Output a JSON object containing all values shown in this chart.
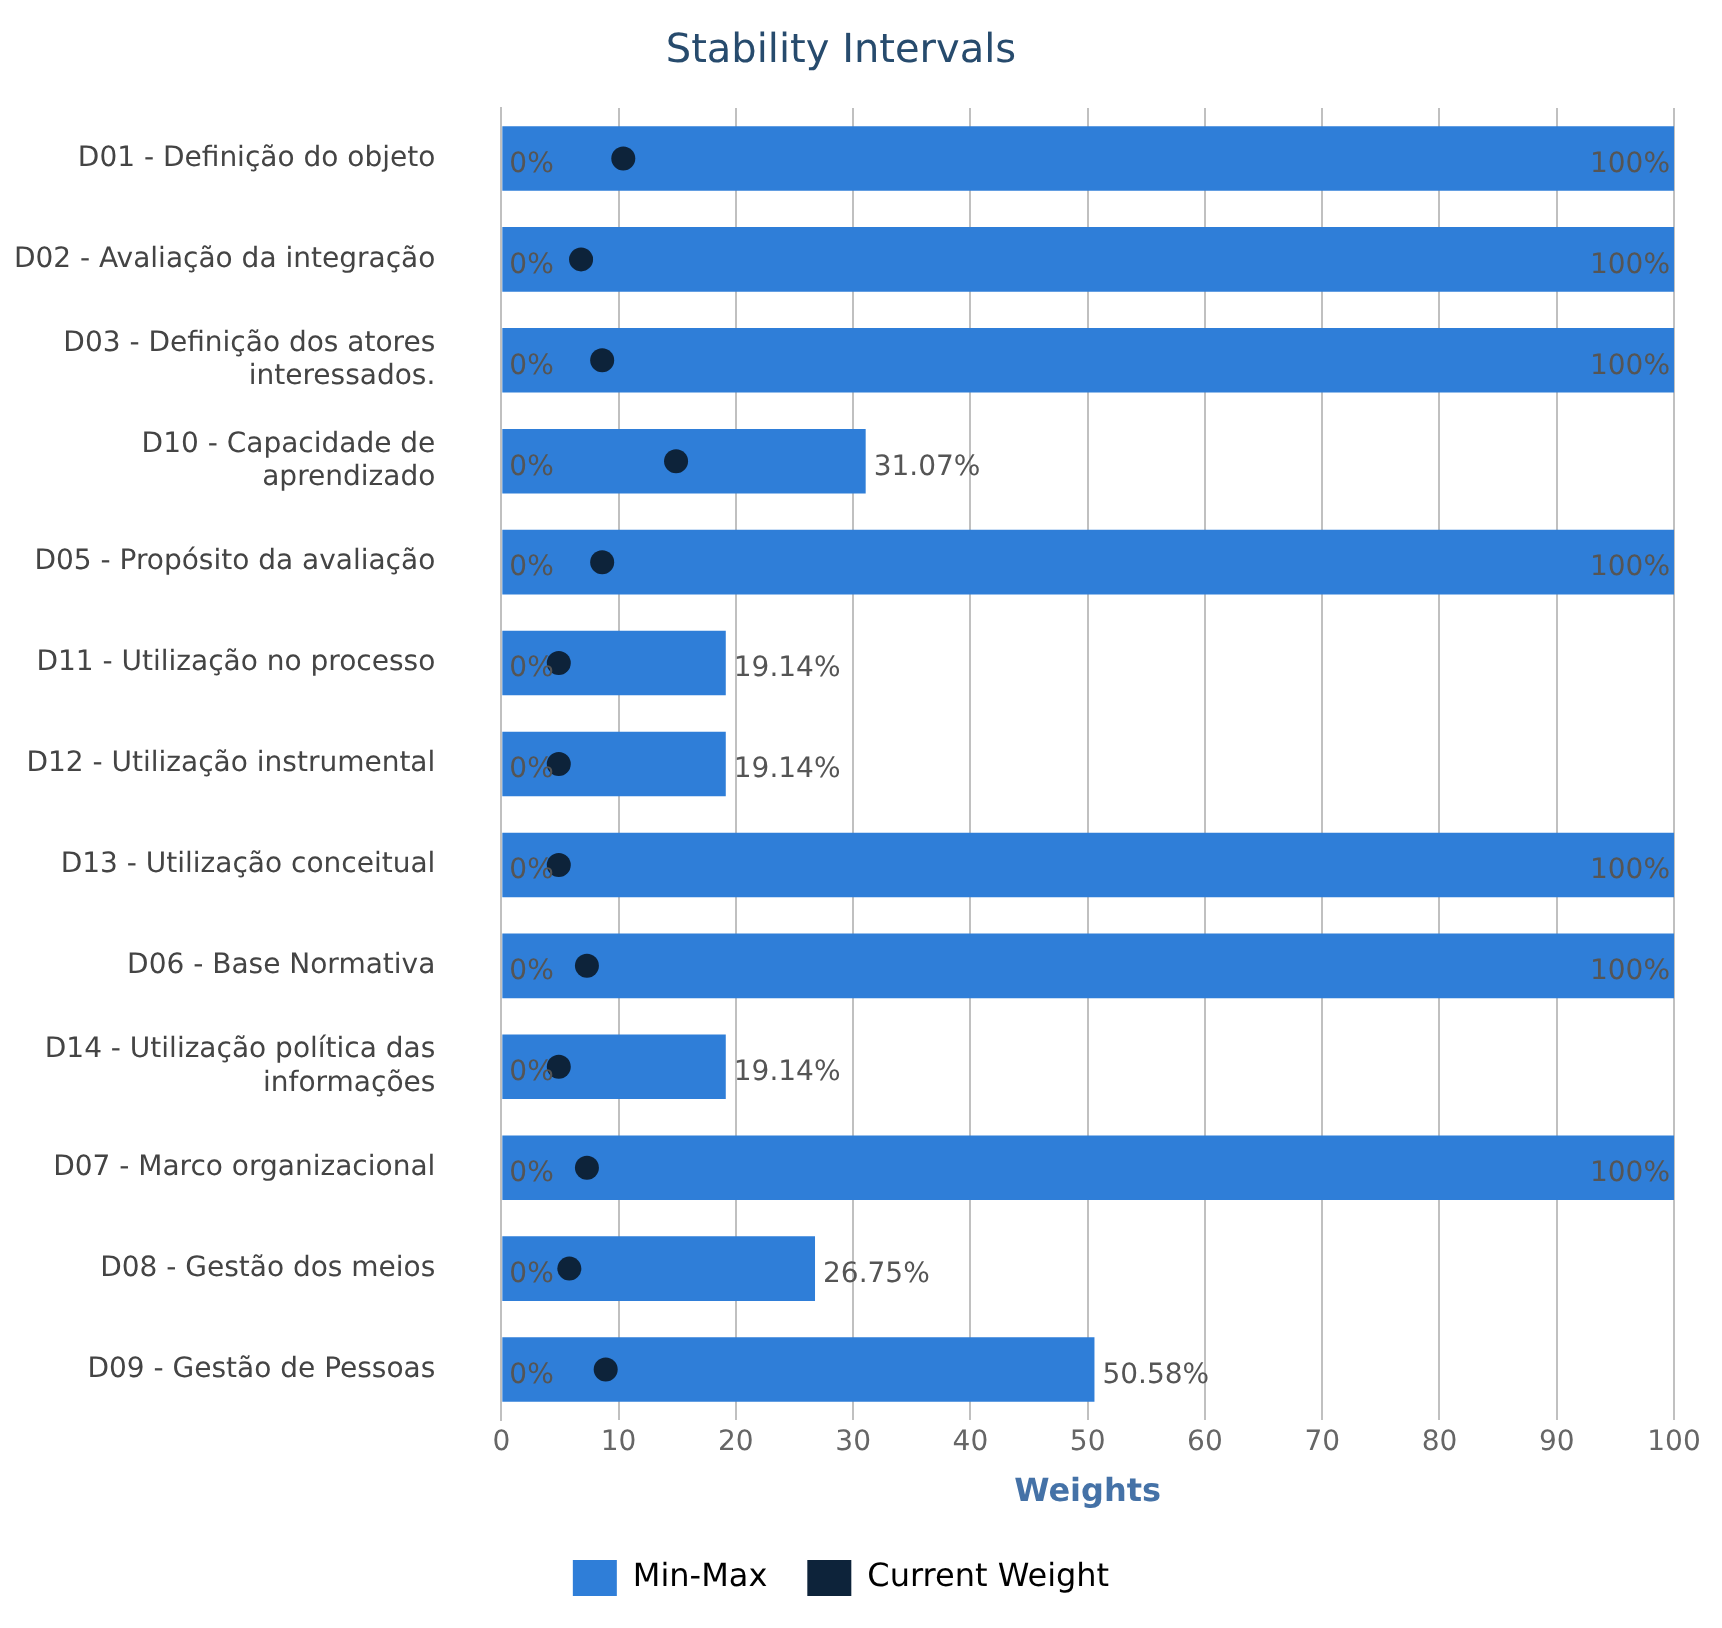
{
  "chart_data": {
    "type": "bar",
    "orientation": "horizontal",
    "title": "Stability Intervals",
    "xlabel": "Weights",
    "categories": [
      "D01 - Definição do objeto",
      "D02 - Avaliação da integração",
      "D03 - Definição dos atores interessados.",
      "D10 - Capacidade de aprendizado",
      "D05 - Propósito da avaliação",
      "D11 - Utilização no processo",
      "D12 - Utilização instrumental",
      "D13 - Utilização conceitual",
      "D06 - Base Normativa",
      "D14 - Utilização política das informações",
      "D07 - Marco organizacional",
      "D08 - Gestão dos meios",
      "D09 - Gestão de Pessoas"
    ],
    "series": [
      {
        "name": "Min-Max",
        "color": "#2f7ed8",
        "base": [
          0,
          0,
          0,
          0,
          0,
          0,
          0,
          0,
          0,
          0,
          0,
          0,
          0
        ],
        "values": [
          100,
          100,
          100,
          31.07,
          100,
          19.14,
          19.14,
          100,
          100,
          19.14,
          100,
          26.75,
          50.58
        ],
        "value_labels": [
          "100%",
          "100%",
          "100%",
          "31.07%",
          "100%",
          "19.14%",
          "19.14%",
          "100%",
          "100%",
          "19.14%",
          "100%",
          "26.75%",
          "50.58%"
        ]
      },
      {
        "name": "Current Weight",
        "type": "scatter",
        "color": "#0d233a",
        "marker": "circle",
        "values": [
          10.4,
          6.8,
          8.6,
          14.9,
          8.6,
          4.9,
          4.9,
          4.9,
          7.3,
          4.9,
          7.3,
          5.8,
          8.9
        ]
      }
    ],
    "annotations": [
      {
        "text": "0%",
        "y": "D01 - Definição do objeto"
      },
      {
        "text": "0%",
        "y": "D02 - Avaliação da integração"
      },
      {
        "text": "0%",
        "y": "D03 - Definição dos atores interessados."
      },
      {
        "text": "0%",
        "y": "D10 - Capacidade de aprendizado"
      },
      {
        "text": "0%",
        "y": "D05 - Propósito da avaliação"
      },
      {
        "text": "0%",
        "y": "D11 - Utilização no processo"
      },
      {
        "text": "0%",
        "y": "D12 - Utilização instrumental"
      },
      {
        "text": "0%",
        "y": "D13 - Utilização conceitual"
      },
      {
        "text": "0%",
        "y": "D06 - Base Normativa"
      },
      {
        "text": "0%",
        "y": "D14 - Utilização política das informações"
      },
      {
        "text": "0%",
        "y": "D07 - Marco organizacional"
      },
      {
        "text": "0%",
        "y": "D08 - Gestão dos meios"
      },
      {
        "text": "0%",
        "y": "D09 - Gestão de Pessoas"
      }
    ],
    "xlim": [
      0,
      100
    ],
    "xticks": [
      0,
      10,
      20,
      30,
      40,
      50,
      60,
      70,
      80,
      90,
      100
    ],
    "grid": "x",
    "legend": "bottom"
  }
}
